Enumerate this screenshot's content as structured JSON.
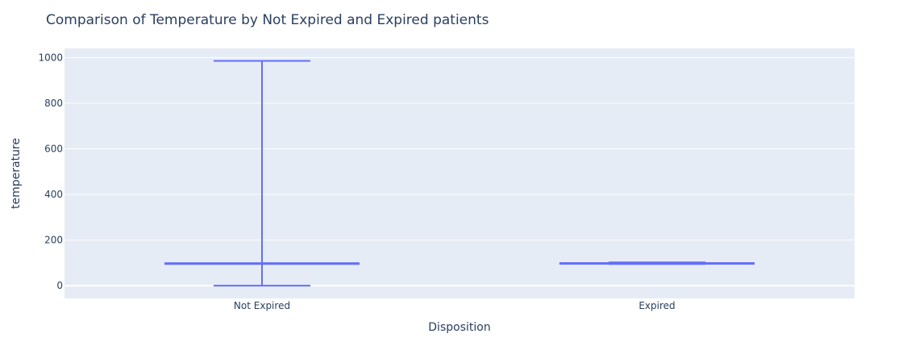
{
  "chart_data": {
    "type": "box",
    "title": "Comparison of Temperature by Not Expired and Expired patients",
    "xlabel": "Disposition",
    "ylabel": "temperature",
    "categories": [
      "Not Expired",
      "Expired"
    ],
    "ylim": [
      -56,
      1040
    ],
    "yticks": [
      0,
      200,
      400,
      600,
      800,
      1000
    ],
    "grid": true,
    "legend": "none",
    "colors": {
      "box": "#636efa",
      "plot_bg": "#e5ecf6",
      "grid": "#ffffff",
      "text": "#2a3f5f"
    },
    "boxes": [
      {
        "category": "Not Expired",
        "min": 0,
        "q1": 97.8,
        "median": 98.2,
        "q3": 98.6,
        "max": 985
      },
      {
        "category": "Expired",
        "min": 95,
        "q1": 97.5,
        "median": 98.3,
        "q3": 99.2,
        "max": 102
      }
    ]
  }
}
